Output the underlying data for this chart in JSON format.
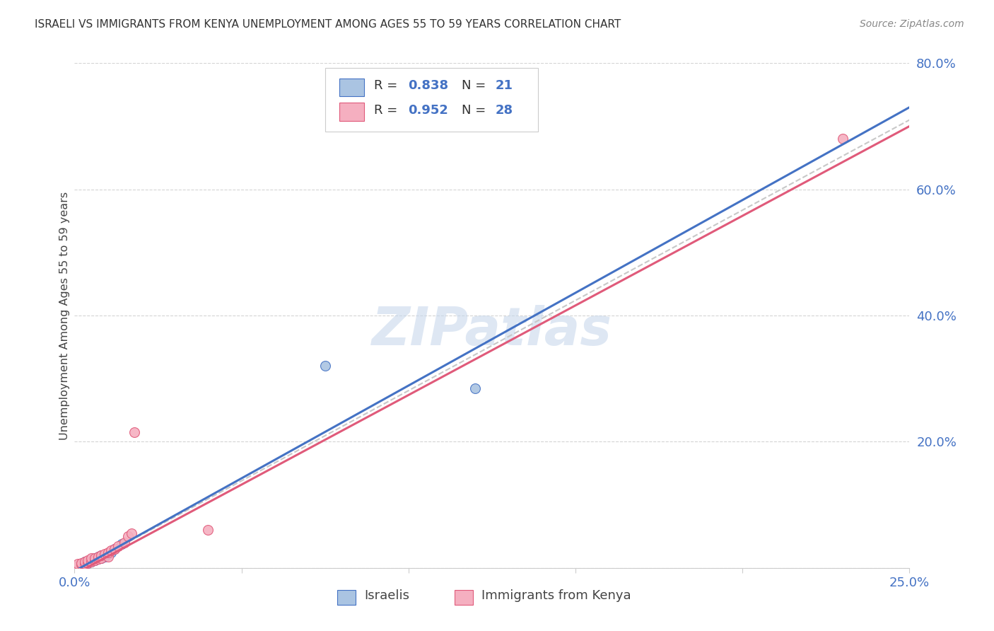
{
  "title": "ISRAELI VS IMMIGRANTS FROM KENYA UNEMPLOYMENT AMONG AGES 55 TO 59 YEARS CORRELATION CHART",
  "source": "Source: ZipAtlas.com",
  "ylabel": "Unemployment Among Ages 55 to 59 years",
  "xmin": 0.0,
  "xmax": 0.25,
  "ymin": 0.0,
  "ymax": 0.8,
  "israeli_R": 0.838,
  "israeli_N": 21,
  "kenya_R": 0.952,
  "kenya_N": 28,
  "israeli_color": "#aac4e2",
  "kenya_color": "#f5afc0",
  "israeli_line_color": "#4472c4",
  "kenya_line_color": "#e05a7a",
  "dashed_line_color": "#c8c8c8",
  "watermark": "ZIPatlas",
  "watermark_color": "#c8d8ec",
  "isr_x": [
    0.001,
    0.002,
    0.002,
    0.003,
    0.003,
    0.004,
    0.005,
    0.005,
    0.006,
    0.006,
    0.007,
    0.007,
    0.008,
    0.008,
    0.009,
    0.01,
    0.011,
    0.012,
    0.014,
    0.075,
    0.12
  ],
  "isr_y": [
    0.003,
    0.005,
    0.007,
    0.006,
    0.01,
    0.008,
    0.01,
    0.013,
    0.012,
    0.015,
    0.014,
    0.018,
    0.016,
    0.02,
    0.018,
    0.022,
    0.025,
    0.03,
    0.038,
    0.32,
    0.285
  ],
  "ken_x": [
    0.001,
    0.001,
    0.002,
    0.002,
    0.003,
    0.003,
    0.004,
    0.004,
    0.005,
    0.005,
    0.006,
    0.006,
    0.007,
    0.007,
    0.008,
    0.008,
    0.009,
    0.01,
    0.01,
    0.011,
    0.012,
    0.013,
    0.015,
    0.016,
    0.017,
    0.018,
    0.04,
    0.23
  ],
  "ken_y": [
    0.003,
    0.006,
    0.005,
    0.008,
    0.007,
    0.01,
    0.008,
    0.012,
    0.01,
    0.015,
    0.012,
    0.016,
    0.014,
    0.018,
    0.016,
    0.02,
    0.022,
    0.018,
    0.025,
    0.028,
    0.03,
    0.035,
    0.04,
    0.05,
    0.055,
    0.215,
    0.06,
    0.68
  ],
  "isr_line_x0": 0.0,
  "isr_line_y0": -0.005,
  "isr_line_x1": 0.25,
  "isr_line_y1": 0.73,
  "ken_line_x0": 0.0,
  "ken_line_y0": -0.01,
  "ken_line_x1": 0.25,
  "ken_line_y1": 0.7,
  "dash_line_x0": 0.0,
  "dash_line_y0": -0.005,
  "dash_line_x1": 0.25,
  "dash_line_y1": 0.71
}
